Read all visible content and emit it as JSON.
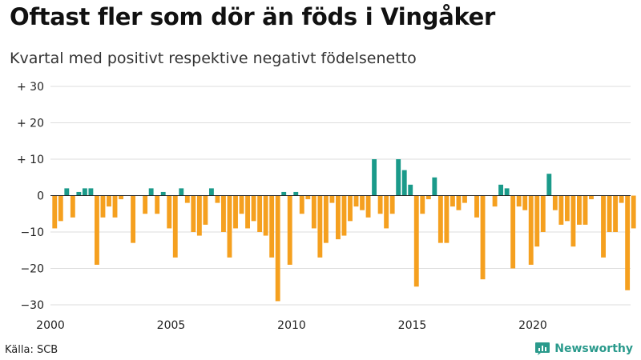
{
  "title": "Oftast fler som dör än föds i Vingåker",
  "subtitle": "Kvartal med positivt respektive negativt födelsenetto",
  "source": "Källa: SCB",
  "brand": "Newsworthy",
  "colors": {
    "positive": "#1a9a8a",
    "negative": "#f5a01f",
    "grid": "#dddddd",
    "axis": "#222222"
  },
  "chart_data": {
    "type": "bar",
    "title": "Oftast fler som dör än föds i Vingåker",
    "subtitle": "Kvartal med positivt respektive negativt födelsenetto",
    "xlabel": "",
    "ylabel": "",
    "ylim": [
      -30,
      30
    ],
    "xlim": [
      2000,
      2024.5
    ],
    "yticks": [
      -30,
      -20,
      -10,
      0,
      10,
      20,
      30
    ],
    "ytick_labels": [
      "−30",
      "−20",
      "−10",
      "0",
      "+ 10",
      "+ 20",
      "+ 30"
    ],
    "xticks": [
      2000,
      2005,
      2010,
      2015,
      2020
    ],
    "xtick_labels": [
      "2000",
      "2005",
      "2010",
      "2015",
      "2020"
    ],
    "start_year": 2000,
    "quarters_per_year": 4,
    "values": [
      -9,
      -7,
      2,
      -6,
      1,
      2,
      2,
      -19,
      -6,
      -3,
      -6,
      -1,
      0,
      -13,
      0,
      -5,
      2,
      -5,
      1,
      -9,
      -17,
      2,
      -2,
      -10,
      -11,
      -8,
      2,
      -2,
      -10,
      -17,
      -9,
      -5,
      -9,
      -7,
      -10,
      -11,
      -17,
      -29,
      1,
      -19,
      1,
      -5,
      -1,
      -9,
      -17,
      -13,
      -2,
      -12,
      -11,
      -7,
      -3,
      -4,
      -6,
      10,
      -5,
      -9,
      -5,
      10,
      7,
      3,
      -25,
      -5,
      -1,
      5,
      -13,
      -13,
      -3,
      -4,
      -2,
      0,
      -6,
      -23,
      0,
      -3,
      3,
      2,
      -20,
      -3,
      -4,
      -19,
      -14,
      -10,
      6,
      -4,
      -8,
      -7,
      -14,
      -8,
      -8,
      -1,
      0,
      -17,
      -10,
      -10,
      -2,
      -26,
      -9
    ]
  }
}
